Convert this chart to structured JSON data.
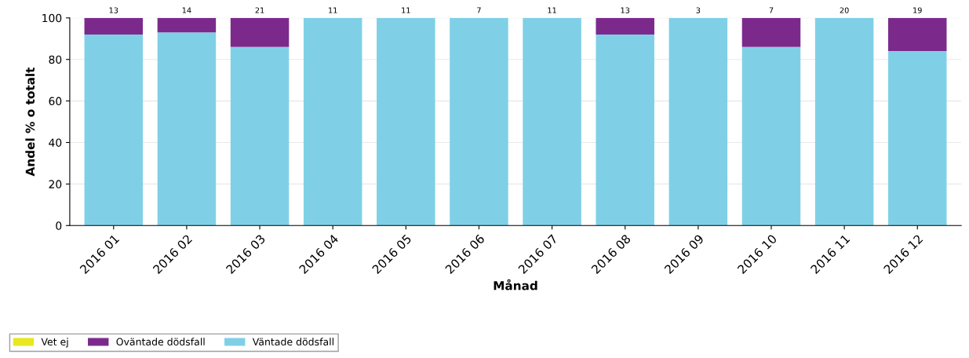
{
  "chart_data": {
    "type": "bar",
    "stacked": true,
    "xlabel": "Månad",
    "ylabel": "Andel % o totalt",
    "categories": [
      "2016 01",
      "2016 02",
      "2016 03",
      "2016 04",
      "2016 05",
      "2016 06",
      "2016 07",
      "2016 08",
      "2016 09",
      "2016 10",
      "2016 11",
      "2016 12"
    ],
    "series": [
      {
        "name": "Väntade dödsfall",
        "color": "#7fd0e6",
        "values": [
          92,
          93,
          86,
          100,
          100,
          100,
          100,
          92,
          100,
          86,
          100,
          84
        ]
      },
      {
        "name": "Oväntade dödsfall",
        "color": "#7b2a8c",
        "values": [
          8,
          7,
          14,
          0,
          0,
          0,
          0,
          8,
          0,
          14,
          0,
          16
        ]
      },
      {
        "name": "Vet ej",
        "color": "#e8e81c",
        "values": [
          0,
          0,
          0,
          0,
          0,
          0,
          0,
          0,
          0,
          0,
          0,
          0
        ]
      }
    ],
    "annotations": [
      {
        "text": "13",
        "x": "2016 01",
        "y": 100
      },
      {
        "text": "14",
        "x": "2016 02",
        "y": 100
      },
      {
        "text": "21",
        "x": "2016 03",
        "y": 100
      },
      {
        "text": "11",
        "x": "2016 04",
        "y": 100
      },
      {
        "text": "11",
        "x": "2016 05",
        "y": 100
      },
      {
        "text": "7",
        "x": "2016 06",
        "y": 100
      },
      {
        "text": "11",
        "x": "2016 07",
        "y": 100
      },
      {
        "text": "13",
        "x": "2016 08",
        "y": 100
      },
      {
        "text": "3",
        "x": "2016 09",
        "y": 100
      },
      {
        "text": "7",
        "x": "2016 10",
        "y": 100
      },
      {
        "text": "20",
        "x": "2016 11",
        "y": 100
      },
      {
        "text": "19",
        "x": "2016 12",
        "y": 100
      }
    ],
    "ylim": [
      0,
      100
    ],
    "yticks": [
      0,
      20,
      40,
      60,
      80,
      100
    ],
    "grid": "y",
    "legend": "bottom left"
  }
}
